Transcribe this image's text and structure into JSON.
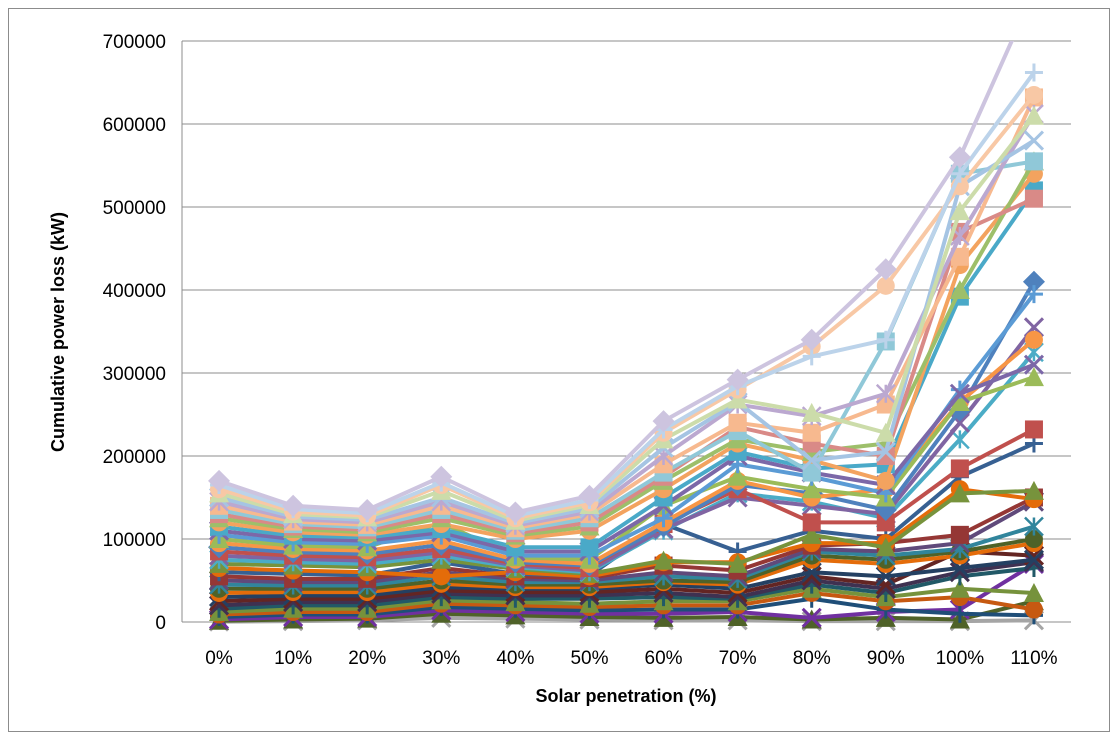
{
  "chart_data": {
    "type": "line",
    "title": "",
    "xlabel": "Solar penetration (%)",
    "ylabel": "Cumulative power loss (kW)",
    "categories": [
      "0%",
      "10%",
      "20%",
      "30%",
      "40%",
      "50%",
      "60%",
      "70%",
      "80%",
      "90%",
      "100%",
      "110%"
    ],
    "ylim": [
      0,
      700000
    ],
    "yticks": [
      0,
      100000,
      200000,
      300000,
      400000,
      500000,
      600000,
      700000
    ],
    "grid": true,
    "legend": "none",
    "series": [
      {
        "color": "#cdc4df",
        "marker": "diamond",
        "values": [
          170000,
          140000,
          135000,
          175000,
          132000,
          152000,
          242000,
          292000,
          340000,
          425000,
          560000,
          760000
        ]
      },
      {
        "color": "#bcd3ea",
        "marker": "plus",
        "values": [
          165000,
          136000,
          131000,
          168000,
          128000,
          147000,
          232000,
          284000,
          320000,
          340000,
          540000,
          662000
        ]
      },
      {
        "color": "#f8c8a5",
        "marker": "circle",
        "values": [
          160000,
          133000,
          128000,
          165000,
          125000,
          144000,
          228000,
          280000,
          332000,
          405000,
          525000,
          635000
        ]
      },
      {
        "color": "#ccdcaa",
        "marker": "triangle",
        "values": [
          155000,
          130000,
          126000,
          158000,
          122000,
          141000,
          220000,
          268000,
          252000,
          228000,
          495000,
          610000
        ]
      },
      {
        "color": "#a5c4e3",
        "marker": "x",
        "values": [
          150000,
          127000,
          123000,
          150000,
          119000,
          137000,
          210000,
          265000,
          195000,
          205000,
          525000,
          580000
        ]
      },
      {
        "color": "#bba8d0",
        "marker": "cross",
        "values": [
          145000,
          124000,
          120000,
          145000,
          116000,
          133000,
          200000,
          262000,
          248000,
          275000,
          465000,
          612000
        ]
      },
      {
        "color": "#f7b98f",
        "marker": "square",
        "values": [
          140000,
          121000,
          117000,
          140000,
          113000,
          130000,
          190000,
          240000,
          228000,
          262000,
          440000,
          632000
        ]
      },
      {
        "color": "#90c8d8",
        "marker": "square",
        "values": [
          135000,
          118000,
          114000,
          135000,
          110000,
          125000,
          180000,
          230000,
          180000,
          338000,
          540000,
          555000
        ]
      },
      {
        "color": "#d98a87",
        "marker": "square",
        "values": [
          130000,
          115000,
          111000,
          130000,
          107000,
          120000,
          175000,
          235000,
          215000,
          200000,
          470000,
          510000
        ]
      },
      {
        "color": "#9dbf6a",
        "marker": "triangle",
        "values": [
          125000,
          112000,
          108000,
          125000,
          104000,
          115000,
          170000,
          220000,
          205000,
          215000,
          400000,
          555000
        ]
      },
      {
        "color": "#f3a35f",
        "marker": "circle",
        "values": [
          120000,
          108000,
          105000,
          118000,
          100000,
          110000,
          160000,
          215000,
          195000,
          170000,
          430000,
          540000
        ]
      },
      {
        "color": "#4aa9c8",
        "marker": "square",
        "values": [
          115000,
          104000,
          102000,
          112000,
          90000,
          90000,
          150000,
          205000,
          185000,
          190000,
          392000,
          520000
        ]
      },
      {
        "color": "#7c68a8",
        "marker": "x",
        "values": [
          110000,
          100000,
          98000,
          108000,
          85000,
          85000,
          140000,
          200000,
          180000,
          165000,
          275000,
          310000
        ]
      },
      {
        "color": "#5b9bd5",
        "marker": "plus",
        "values": [
          105000,
          96000,
          94000,
          104000,
          80000,
          80000,
          125000,
          190000,
          175000,
          155000,
          280000,
          395000
        ]
      },
      {
        "color": "#9bbb59",
        "marker": "triangle",
        "values": [
          100000,
          92000,
          90000,
          120000,
          78000,
          75000,
          140000,
          175000,
          160000,
          150000,
          265000,
          295000
        ]
      },
      {
        "color": "#f79646",
        "marker": "circle",
        "values": [
          95000,
          88000,
          86000,
          98000,
          75000,
          70000,
          120000,
          170000,
          150000,
          160000,
          265000,
          340000
        ]
      },
      {
        "color": "#4f81bd",
        "marker": "diamond",
        "values": [
          90000,
          84000,
          82000,
          93000,
          72000,
          68000,
          115000,
          165000,
          155000,
          135000,
          255000,
          410000
        ]
      },
      {
        "color": "#c0504d",
        "marker": "square",
        "values": [
          85000,
          80000,
          78000,
          88000,
          70000,
          65000,
          118000,
          160000,
          120000,
          120000,
          185000,
          232000
        ]
      },
      {
        "color": "#8064a2",
        "marker": "x",
        "values": [
          80000,
          76000,
          74000,
          84000,
          68000,
          62000,
          112000,
          150000,
          140000,
          130000,
          240000,
          355000
        ]
      },
      {
        "color": "#4bacc6",
        "marker": "cross",
        "values": [
          75000,
          72000,
          70000,
          80000,
          66000,
          60000,
          110000,
          155000,
          145000,
          125000,
          220000,
          325000
        ]
      },
      {
        "color": "#77933c",
        "marker": "triangle",
        "values": [
          70000,
          68000,
          66000,
          75000,
          64000,
          58000,
          74000,
          70000,
          105000,
          90000,
          155000,
          158000
        ]
      },
      {
        "color": "#e46c0a",
        "marker": "circle",
        "values": [
          65000,
          62000,
          60000,
          55000,
          60000,
          55000,
          72000,
          72000,
          95000,
          95000,
          160000,
          148000
        ]
      },
      {
        "color": "#376092",
        "marker": "plus",
        "values": [
          60000,
          58000,
          56000,
          72000,
          58000,
          56000,
          118000,
          85000,
          110000,
          100000,
          175000,
          215000
        ]
      },
      {
        "color": "#953735",
        "marker": "square",
        "values": [
          55000,
          52000,
          52000,
          65000,
          55000,
          53000,
          68000,
          62000,
          92000,
          95000,
          105000,
          150000
        ]
      },
      {
        "color": "#604a7b",
        "marker": "x",
        "values": [
          50000,
          48000,
          48000,
          60000,
          52000,
          50000,
          60000,
          55000,
          88000,
          85000,
          95000,
          145000
        ]
      },
      {
        "color": "#31859c",
        "marker": "cross",
        "values": [
          45000,
          44000,
          44000,
          55000,
          48000,
          48000,
          55000,
          52000,
          85000,
          80000,
          88000,
          115000
        ]
      },
      {
        "color": "#4f6228",
        "marker": "circle",
        "values": [
          40000,
          40000,
          40000,
          50000,
          45000,
          45000,
          50000,
          48000,
          80000,
          75000,
          85000,
          100000
        ]
      },
      {
        "color": "#e46c0a",
        "marker": "circle",
        "values": [
          35000,
          36000,
          36000,
          46000,
          42000,
          42000,
          48000,
          45000,
          75000,
          70000,
          80000,
          95000
        ]
      },
      {
        "color": "#244062",
        "marker": "x",
        "values": [
          30000,
          32000,
          32000,
          42000,
          40000,
          40000,
          45000,
          40000,
          60000,
          55000,
          65000,
          75000
        ]
      },
      {
        "color": "#632523",
        "marker": "x",
        "values": [
          25000,
          28000,
          28000,
          38000,
          36000,
          36000,
          40000,
          35000,
          55000,
          45000,
          85000,
          80000
        ]
      },
      {
        "color": "#3f3151",
        "marker": "x",
        "values": [
          20000,
          24000,
          24000,
          34000,
          32000,
          32000,
          35000,
          30000,
          50000,
          40000,
          60000,
          72000
        ]
      },
      {
        "color": "#215967",
        "marker": "plus",
        "values": [
          16000,
          20000,
          20000,
          30000,
          28000,
          28000,
          30000,
          28000,
          45000,
          35000,
          55000,
          65000
        ]
      },
      {
        "color": "#76923c",
        "marker": "triangle",
        "values": [
          12000,
          16000,
          16000,
          26000,
          24000,
          22000,
          25000,
          25000,
          40000,
          30000,
          40000,
          35000
        ]
      },
      {
        "color": "#c65911",
        "marker": "circle",
        "values": [
          9000,
          12000,
          12000,
          22000,
          20000,
          18000,
          20000,
          20000,
          35000,
          25000,
          30000,
          15000
        ]
      },
      {
        "color": "#1f4e78",
        "marker": "plus",
        "values": [
          6000,
          9000,
          9000,
          18000,
          16000,
          14000,
          15000,
          15000,
          28000,
          15000,
          10000,
          8000
        ]
      },
      {
        "color": "#7030a0",
        "marker": "x",
        "values": [
          3000,
          6000,
          6000,
          14000,
          12000,
          10000,
          10000,
          12000,
          5000,
          12000,
          15000,
          70000
        ]
      },
      {
        "color": "#4f6228",
        "marker": "triangle",
        "values": [
          1500,
          3000,
          4000,
          10000,
          8000,
          6000,
          5000,
          6000,
          3000,
          5000,
          3000,
          25000
        ]
      },
      {
        "color": "#a5a5a5",
        "marker": "x",
        "values": [
          500,
          1000,
          2000,
          5000,
          4000,
          3000,
          2000,
          2000,
          1000,
          1000,
          1000,
          2000
        ]
      }
    ]
  }
}
